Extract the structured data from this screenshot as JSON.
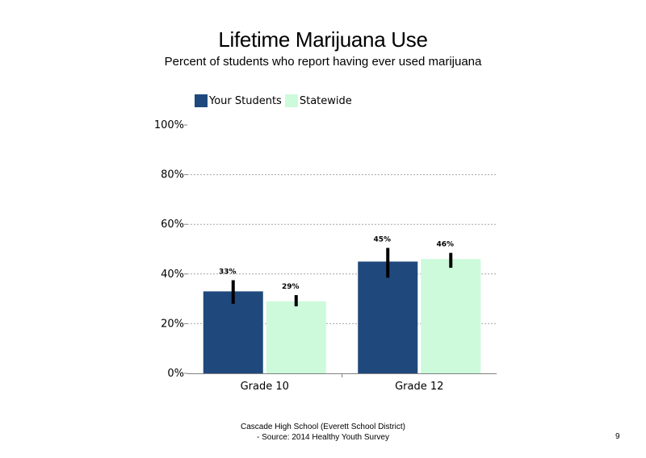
{
  "chart_data": {
    "type": "bar",
    "title": "Lifetime Marijuana Use",
    "subtitle": "Percent of students who report having ever used marijuana",
    "categories": [
      "Grade 10",
      "Grade 12"
    ],
    "series": [
      {
        "name": "Your Students",
        "color": "#1f497d",
        "values": [
          33,
          45
        ],
        "labels": [
          "33%",
          "45%"
        ],
        "error_low": [
          28,
          38.5
        ],
        "error_high": [
          37.5,
          50.5
        ]
      },
      {
        "name": "Statewide",
        "color": "#ccfadb",
        "values": [
          29,
          46
        ],
        "labels": [
          "29%",
          "46%"
        ],
        "error_low": [
          27,
          42.5
        ],
        "error_high": [
          31.5,
          48.5
        ]
      }
    ],
    "y_ticks": [
      "0%",
      "20%",
      "40%",
      "60%",
      "80%",
      "100%"
    ],
    "ylim": [
      0,
      100
    ],
    "grid": "dashed horizontal",
    "legend_position": "top-left"
  },
  "footer": {
    "line1": "Cascade High School (Everett School District)",
    "line2": "- Source: 2014 Healthy Youth Survey"
  },
  "page_number": "9"
}
